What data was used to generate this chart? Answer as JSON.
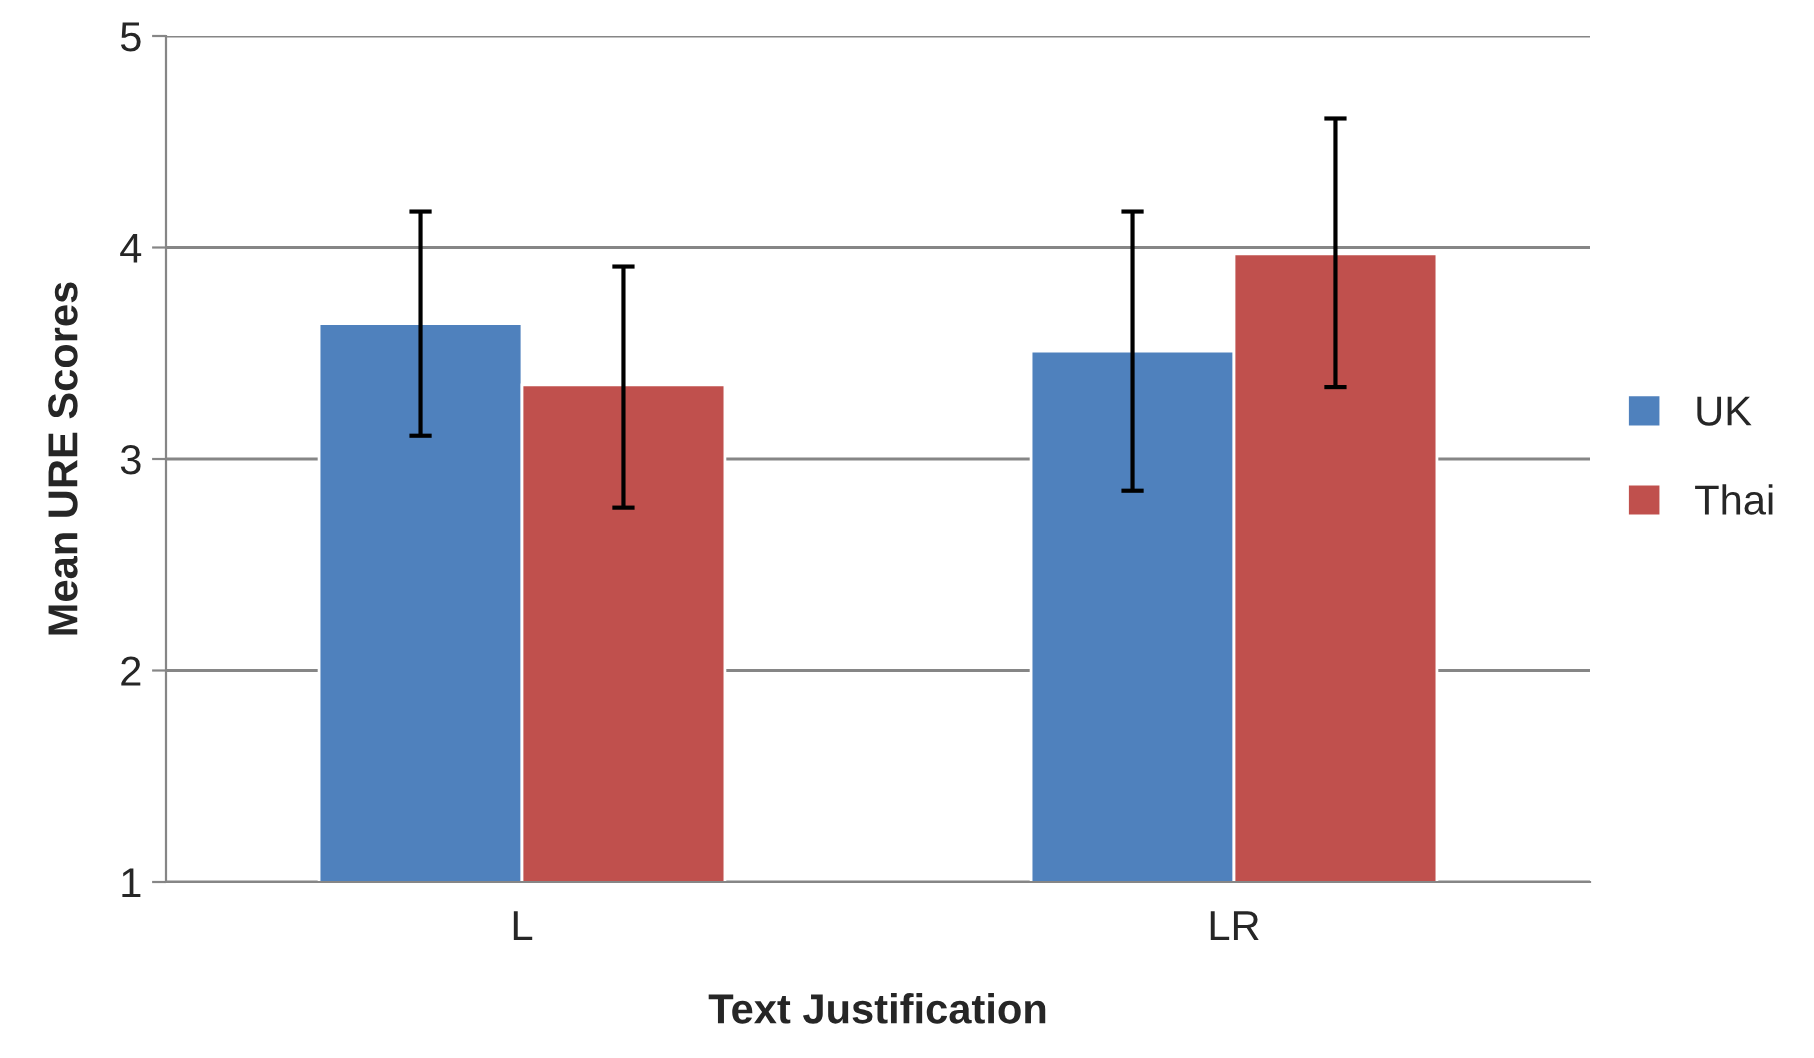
{
  "chart_data": {
    "type": "bar",
    "xlabel": "Text Justification",
    "ylabel": "Mean URE Scores",
    "categories": [
      "L",
      "LR"
    ],
    "series": [
      {
        "name": "UK",
        "color": "#4f81bd",
        "values": [
          3.64,
          3.51
        ],
        "errors": [
          [
            3.11,
            4.17
          ],
          [
            2.85,
            4.17
          ]
        ]
      },
      {
        "name": "Thai",
        "color": "#c0504d",
        "values": [
          3.35,
          3.97
        ],
        "errors": [
          [
            2.77,
            3.91
          ],
          [
            3.34,
            4.61
          ]
        ]
      }
    ],
    "ylim": [
      1,
      5
    ],
    "yticks": [
      1,
      2,
      3,
      4,
      5
    ],
    "grid": "y",
    "legend": "right"
  }
}
